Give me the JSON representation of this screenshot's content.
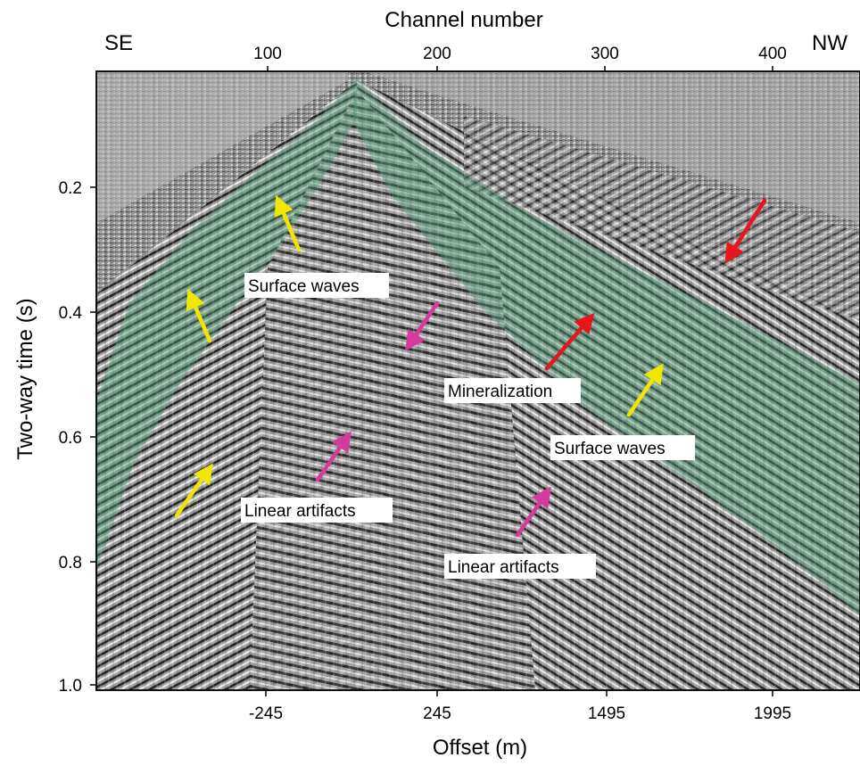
{
  "figure": {
    "top_axis": {
      "title": "Channel number",
      "ticks": [
        "100",
        "200",
        "300",
        "400"
      ]
    },
    "bottom_axis": {
      "title": "Offset (m)",
      "ticks": [
        "-245",
        "245",
        "1495",
        "1995"
      ]
    },
    "left_axis": {
      "title": "Two-way time (s)",
      "ticks": [
        "0.2",
        "0.4",
        "0.6",
        "0.8",
        "1.0"
      ]
    },
    "corner_labels": {
      "left": "SE",
      "right": "NW"
    },
    "annotations": [
      {
        "text": "Surface waves",
        "arrow_color": "yellow"
      },
      {
        "text": "Mineralization",
        "arrow_color": "red"
      },
      {
        "text": "Surface waves",
        "arrow_color": "yellow"
      },
      {
        "text": "Linear artifacts",
        "arrow_color": "magenta"
      },
      {
        "text": "Linear artifacts",
        "arrow_color": "magenta"
      }
    ],
    "colors": {
      "surface_wave_band": "#4d9e72",
      "arrow_yellow": "#f2e600",
      "arrow_red": "#e8161c",
      "arrow_magenta": "#d63a9a",
      "seismic_background": "#9a9a9a"
    }
  }
}
